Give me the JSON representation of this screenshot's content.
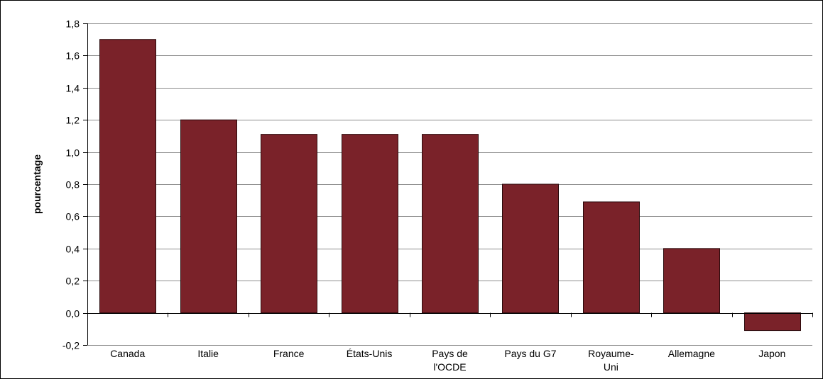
{
  "chart_data": {
    "type": "bar",
    "title": "",
    "xlabel": "",
    "ylabel": "pourcentage",
    "categories": [
      [
        "Canada"
      ],
      [
        "Italie"
      ],
      [
        "France"
      ],
      [
        "États-Unis"
      ],
      [
        "Pays de",
        "l'OCDE"
      ],
      [
        "Pays du G7"
      ],
      [
        "Royaume-",
        "Uni"
      ],
      [
        "Allemagne"
      ],
      [
        "Japon"
      ]
    ],
    "values": [
      1.7,
      1.2,
      1.11,
      1.11,
      1.11,
      0.8,
      0.69,
      0.4,
      -0.11
    ],
    "ylim": [
      -0.2,
      1.8
    ],
    "yticks": [
      -0.2,
      0.0,
      0.2,
      0.4,
      0.6,
      0.8,
      1.0,
      1.2,
      1.4,
      1.6,
      1.8
    ],
    "ytick_labels": [
      "-0,2",
      "0,0",
      "0,2",
      "0,4",
      "0,6",
      "0,8",
      "1,0",
      "1,2",
      "1,4",
      "1,6",
      "1,8"
    ],
    "grid": true,
    "legend": "none",
    "colors": {
      "bar": "#7a2229",
      "bar_stroke": "#2a0a0c",
      "grid": "#8c8c8c",
      "axis": "#000000"
    }
  }
}
